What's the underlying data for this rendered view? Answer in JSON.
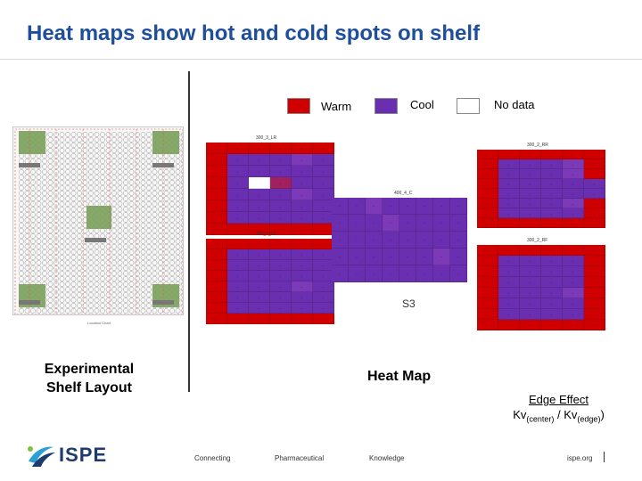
{
  "header": {
    "title": "Heat maps show hot and cold spots on shelf"
  },
  "legend": [
    {
      "label": "Warm",
      "color": "#d00000"
    },
    {
      "label": "Cool",
      "color": "#6a2fb0"
    },
    {
      "label": "No data",
      "color": "#ffffff"
    }
  ],
  "left": {
    "caption_line1": "Experimental",
    "caption_line2": "Shelf Layout",
    "shelf_note": "Location Chart"
  },
  "heatmap": {
    "label": "Heat Map",
    "shelf_label": "S3",
    "panels": [
      {
        "title": "300_3_LR",
        "rows": 8,
        "cols": 6,
        "cells": "WWWWWWWPPPCPWPPPPPWPNRPPWPPPCPWPPPPPWPPPPPWWWWWW"
      },
      {
        "title": "300_3_LF",
        "rows": 8,
        "cols": 6,
        "cells": "WWWWWWWPPPPPWPPPPPWPPPPPWPPPCPWPPPPPWPPPPPWWWWWW"
      },
      {
        "title": "300_2_RR",
        "rows": 8,
        "cols": 6,
        "cells": "WWWWWWWPPPCWWPPPCWWPPPPPWPPPPPWPPPCWWPPPPWWWWWWW"
      },
      {
        "title": "300_2_RF",
        "rows": 8,
        "cols": 6,
        "cells": "WWWWWWWPPPPWWPPPPWWPPPPWWPPPCWWPPPPWWPPPPWWWWWWW"
      },
      {
        "title": "400_4_C",
        "rows": 5,
        "cols": 8,
        "cells": "PPCPPPPPPPPCPPPPPPPPPPPPPPPPPPCPPPPPPPPP"
      }
    ]
  },
  "edge_effect": {
    "line1": "Edge Effect",
    "kv": "Kv",
    "center": "(center)",
    "slash": " / Kv",
    "edge": "(edge)",
    "close": ")"
  },
  "footer": {
    "logo": "ISPE",
    "links": [
      "Connecting",
      "Pharmaceutical",
      "Knowledge",
      "ispe.org"
    ]
  },
  "colors": {
    "title": "#1f4e9c",
    "warm": "#d00000",
    "cool": "#6a2fb0",
    "mid": "#a02060",
    "green": "#7aa05a"
  }
}
